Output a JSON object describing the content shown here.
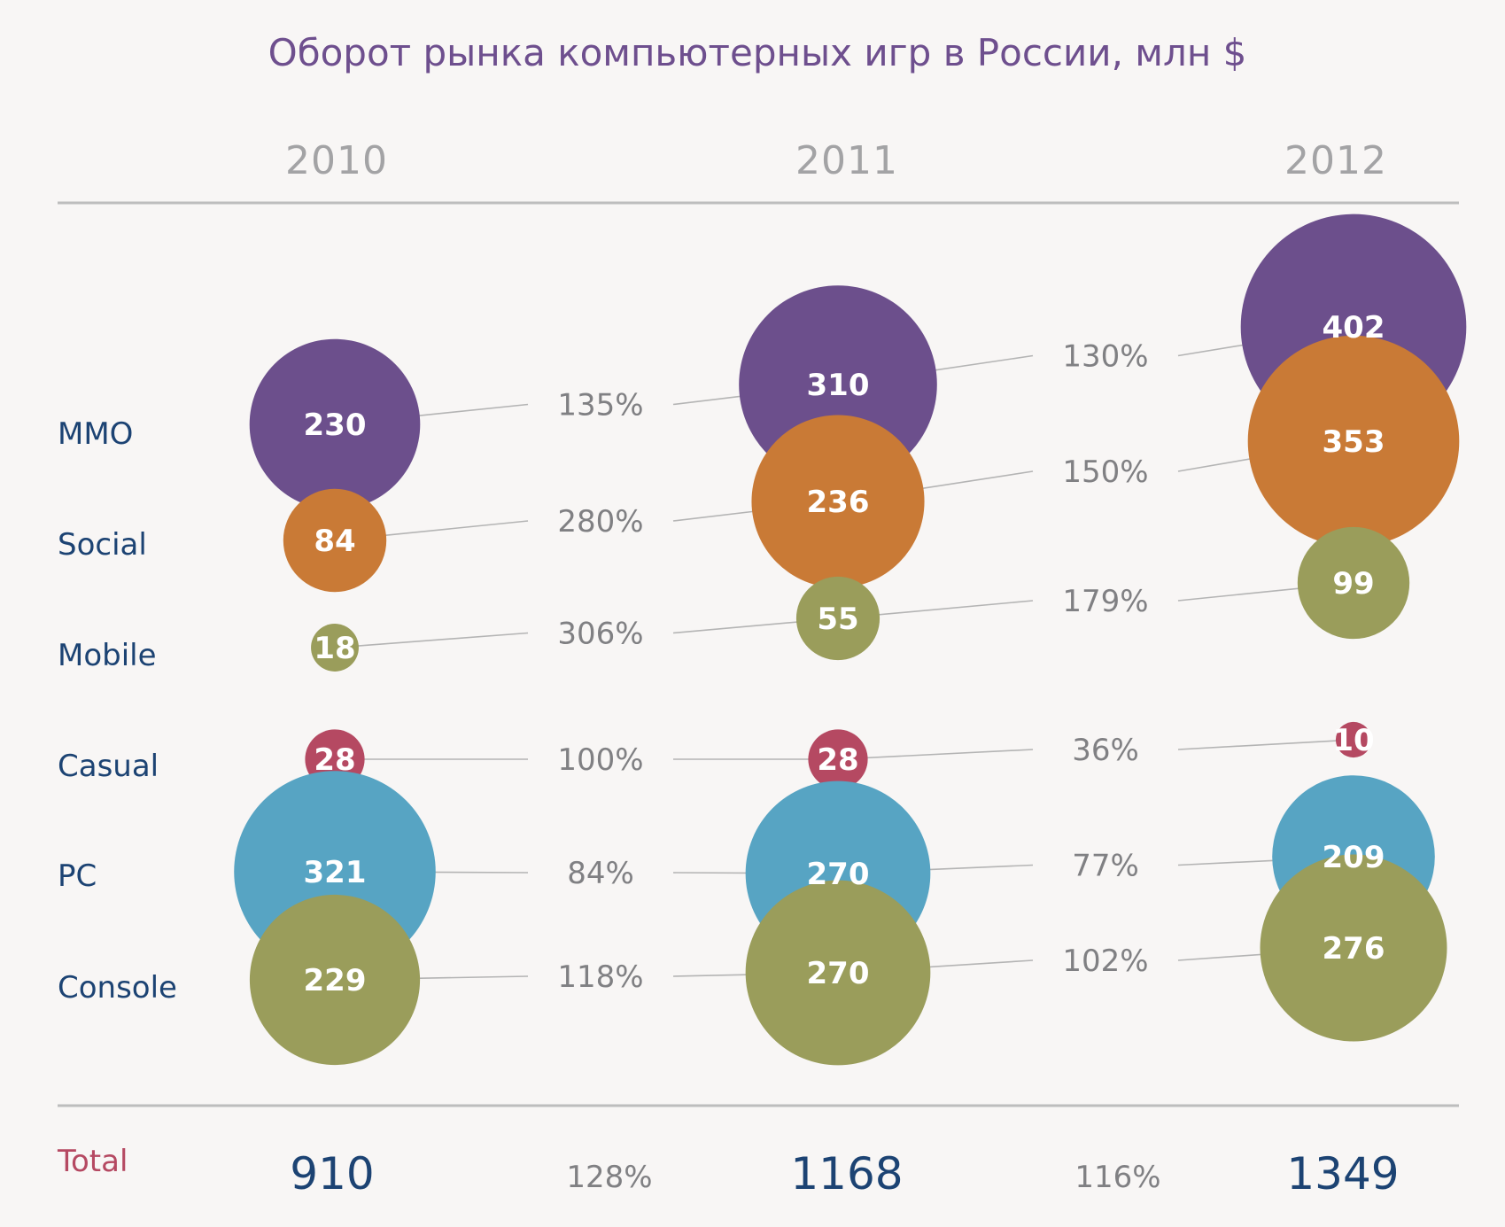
{
  "chart_data": {
    "type": "bubble",
    "title": "Оборот рынка компьютерных игр в России, млн $",
    "years": [
      "2010",
      "2011",
      "2012"
    ],
    "categories": [
      "MMO",
      "Social",
      "Mobile",
      "Casual",
      "PC",
      "Console"
    ],
    "series": [
      {
        "name": "MMO",
        "color": "#6c4f8c",
        "values": [
          230,
          310,
          402
        ],
        "growth": [
          "135%",
          "130%"
        ]
      },
      {
        "name": "Social",
        "color": "#c97a36",
        "values": [
          84,
          236,
          353
        ],
        "growth": [
          "280%",
          "150%"
        ]
      },
      {
        "name": "Mobile",
        "color": "#9a9d5b",
        "values": [
          18,
          55,
          99
        ],
        "growth": [
          "306%",
          "179%"
        ]
      },
      {
        "name": "Casual",
        "color": "#b54962",
        "values": [
          28,
          28,
          10
        ],
        "growth": [
          "100%",
          "36%"
        ]
      },
      {
        "name": "PC",
        "color": "#57a4c3",
        "values": [
          321,
          270,
          209
        ],
        "growth": [
          "84%",
          "77%"
        ]
      },
      {
        "name": "Console",
        "color": "#9a9d5b",
        "values": [
          229,
          270,
          276
        ],
        "growth": [
          "118%",
          "102%"
        ]
      }
    ],
    "total": {
      "label": "Total",
      "values": [
        910,
        1168,
        1349
      ],
      "growth": [
        "128%",
        "116%"
      ]
    }
  },
  "colors": {
    "title": "#6e4f8e",
    "year": "#a3a3a5",
    "category_label": "#1c4373",
    "percent": "#808083",
    "connector": "#b4b4b4",
    "rule": "#bdbdbd",
    "total_label": "#b54962",
    "total_value": "#1c4373",
    "bubble_text": "#ffffff"
  }
}
